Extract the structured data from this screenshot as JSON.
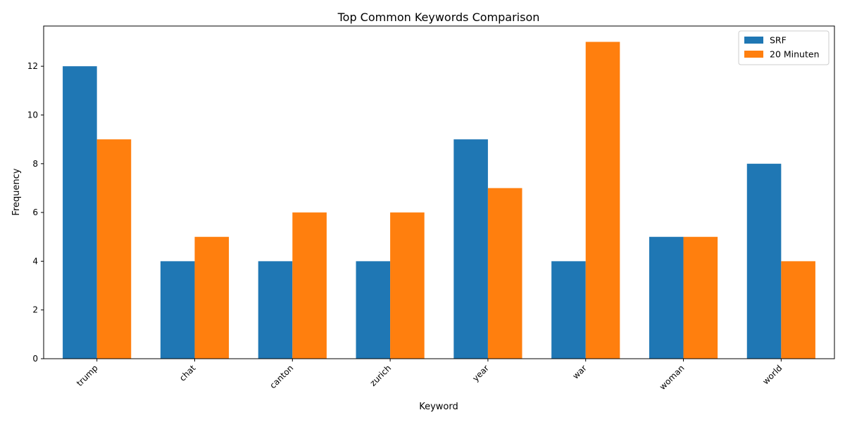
{
  "chart_data": {
    "type": "bar",
    "title": "Top Common Keywords Comparison",
    "xlabel": "Keyword",
    "ylabel": "Frequency",
    "categories": [
      "trump",
      "chat",
      "canton",
      "zurich",
      "year",
      "war",
      "woman",
      "world"
    ],
    "series": [
      {
        "name": "SRF",
        "color": "#1f77b4",
        "values": [
          12,
          4,
          4,
          4,
          9,
          4,
          5,
          8
        ]
      },
      {
        "name": "20 Minuten",
        "color": "#ff7f0e",
        "values": [
          9,
          5,
          6,
          6,
          7,
          13,
          5,
          4
        ]
      }
    ],
    "ylim": [
      0,
      13.65
    ],
    "yticks": [
      0,
      2,
      4,
      6,
      8,
      10,
      12
    ],
    "grid": false,
    "legend_position": "top-right"
  }
}
